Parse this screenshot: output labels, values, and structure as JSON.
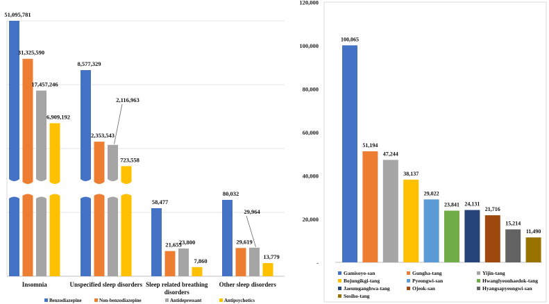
{
  "chart_data": [
    {
      "type": "bar",
      "title": "",
      "xlabel": "",
      "ylabel": "",
      "axis_break": true,
      "legend_position": "bottom",
      "categories": [
        "Insomnia",
        "Unspecified sleep disorders",
        "Sleep related breathing disorders",
        "Other sleep disorders"
      ],
      "series": [
        {
          "name": "Benzodiazepine",
          "color": "#4472C4",
          "values": [
            51095781,
            8577329,
            58477,
            80032
          ],
          "labels": [
            "51,095,781",
            "8,577,329",
            "58,477",
            "80,032"
          ]
        },
        {
          "name": "Non-benzodiazepine",
          "color": "#ED7D31",
          "values": [
            31325590,
            2353543,
            21655,
            29619
          ],
          "labels": [
            "31,325,590",
            "2,353,543",
            "21,655",
            "29,619"
          ]
        },
        {
          "name": "Antidepressant",
          "color": "#A5A5A5",
          "values": [
            17457246,
            2116963,
            23800,
            29964
          ],
          "labels": [
            "17,457,246",
            "2,116,963",
            "23,800",
            "29,964"
          ]
        },
        {
          "name": "Antipsychotics",
          "color": "#FFC000",
          "values": [
            6909192,
            723558,
            7860,
            13779
          ],
          "labels": [
            "6,909,192",
            "723,558",
            "7,860",
            "13,779"
          ]
        }
      ]
    },
    {
      "type": "bar",
      "title": "",
      "xlabel": "",
      "ylabel": "",
      "ylim": [
        0,
        120000
      ],
      "yticks": [
        0,
        20000,
        40000,
        60000,
        80000,
        100000,
        120000
      ],
      "ytick_labels": [
        "-",
        "20,000",
        "40,000",
        "60,000",
        "80,000",
        "100,000",
        "120,000"
      ],
      "legend_position": "bottom",
      "categories": [
        "Gamisoyo-san",
        "Gungha-tang",
        "Yijin-tang",
        "Bojungikgi-tang",
        "Pyeongwi-san",
        "Hwanglyeonhaedok-tang",
        "Jaeumganghwa-tang",
        "Ojeok-san",
        "Hyangsapyeongwi-san",
        "Sosiho-tang"
      ],
      "values": [
        100065,
        51194,
        47244,
        38137,
        29022,
        23841,
        24131,
        21716,
        15214,
        11490
      ],
      "labels": [
        "100,065",
        "51,194",
        "47,244",
        "38,137",
        "29,022",
        "23,841",
        "24,131",
        "21,716",
        "15,214",
        "11,490"
      ],
      "colors": [
        "#4472C4",
        "#ED7D31",
        "#A5A5A5",
        "#FFC000",
        "#5B9BD5",
        "#70AD47",
        "#264478",
        "#9E480E",
        "#636363",
        "#997300"
      ]
    }
  ]
}
